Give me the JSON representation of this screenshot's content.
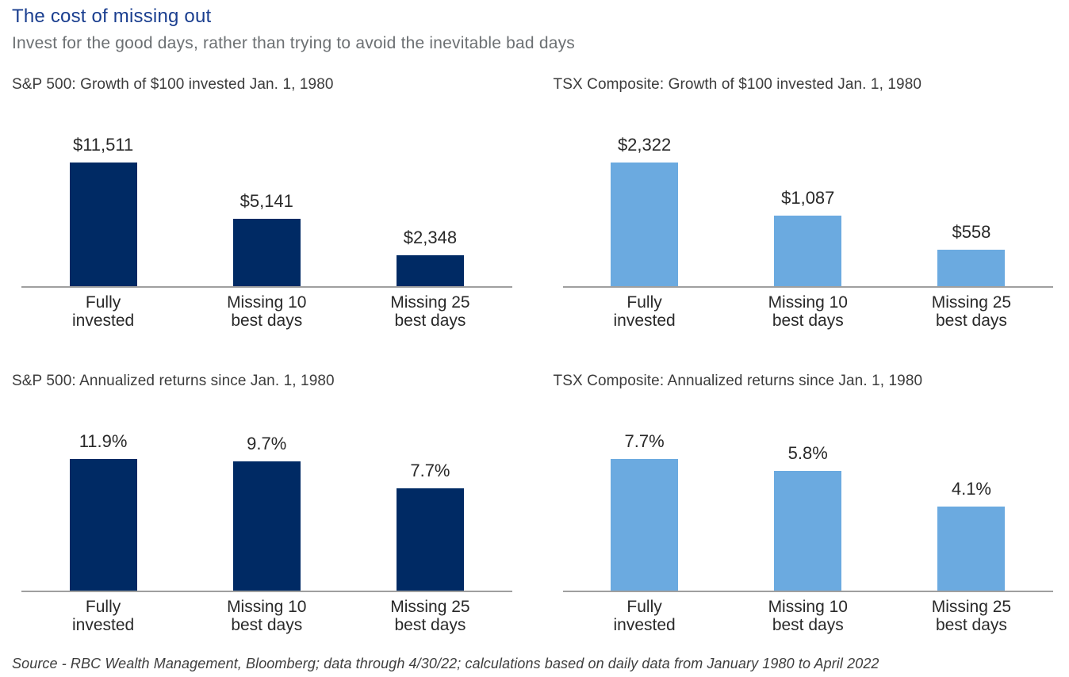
{
  "page": {
    "title": "The cost of missing out",
    "subtitle": "Invest for the good days, rather than trying to avoid the inevitable bad days",
    "source": "Source - RBC Wealth Management, Bloomberg; data through 4/30/22; calculations based on daily data from January 1980 to April 2022"
  },
  "colors": {
    "title_blue": "#1A3E8F",
    "navy": "#002A64",
    "light_blue": "#6BAAE0",
    "axis_gray": "#9F9F9F"
  },
  "chart_data": [
    {
      "type": "bar",
      "title": "S&P 500: Growth of $100 invested Jan. 1, 1980",
      "categories": [
        [
          "Fully",
          "invested"
        ],
        [
          "Missing 10",
          "best days"
        ],
        [
          "Missing 25",
          "best days"
        ]
      ],
      "values": [
        11511,
        5141,
        2348
      ],
      "value_labels": [
        "$11,511",
        "$5,141",
        "$2,348"
      ],
      "bar_color": "#002A64",
      "ylim": [
        0,
        11511
      ],
      "grid": false,
      "legend": "none"
    },
    {
      "type": "bar",
      "title": "TSX Composite: Growth of $100 invested Jan. 1, 1980",
      "categories": [
        [
          "Fully",
          "invested"
        ],
        [
          "Missing 10",
          "best days"
        ],
        [
          "Missing 25",
          "best days"
        ]
      ],
      "values": [
        2322,
        1087,
        558
      ],
      "value_labels": [
        "$2,322",
        "$1,087",
        "$558"
      ],
      "bar_color": "#6BAAE0",
      "ylim": [
        0,
        2322
      ],
      "grid": false,
      "legend": "none"
    },
    {
      "type": "bar",
      "title": "S&P 500: Annualized returns since Jan. 1, 1980",
      "categories": [
        [
          "Fully",
          "invested"
        ],
        [
          "Missing 10",
          "best days"
        ],
        [
          "Missing 25",
          "best days"
        ]
      ],
      "values": [
        11.9,
        9.7,
        7.7
      ],
      "value_labels": [
        "11.9%",
        "9.7%",
        "7.7%"
      ],
      "bar_color": "#002A64",
      "ylim": [
        0,
        11.9
      ],
      "grid": false,
      "legend": "none"
    },
    {
      "type": "bar",
      "title": "TSX Composite: Annualized returns since Jan. 1, 1980",
      "categories": [
        [
          "Fully",
          "invested"
        ],
        [
          "Missing 10",
          "best days"
        ],
        [
          "Missing 25",
          "best days"
        ]
      ],
      "values": [
        7.7,
        5.8,
        4.1
      ],
      "value_labels": [
        "7.7%",
        "5.8%",
        "4.1%"
      ],
      "bar_color": "#6BAAE0",
      "ylim": [
        0,
        7.7
      ],
      "grid": false,
      "legend": "none"
    }
  ]
}
